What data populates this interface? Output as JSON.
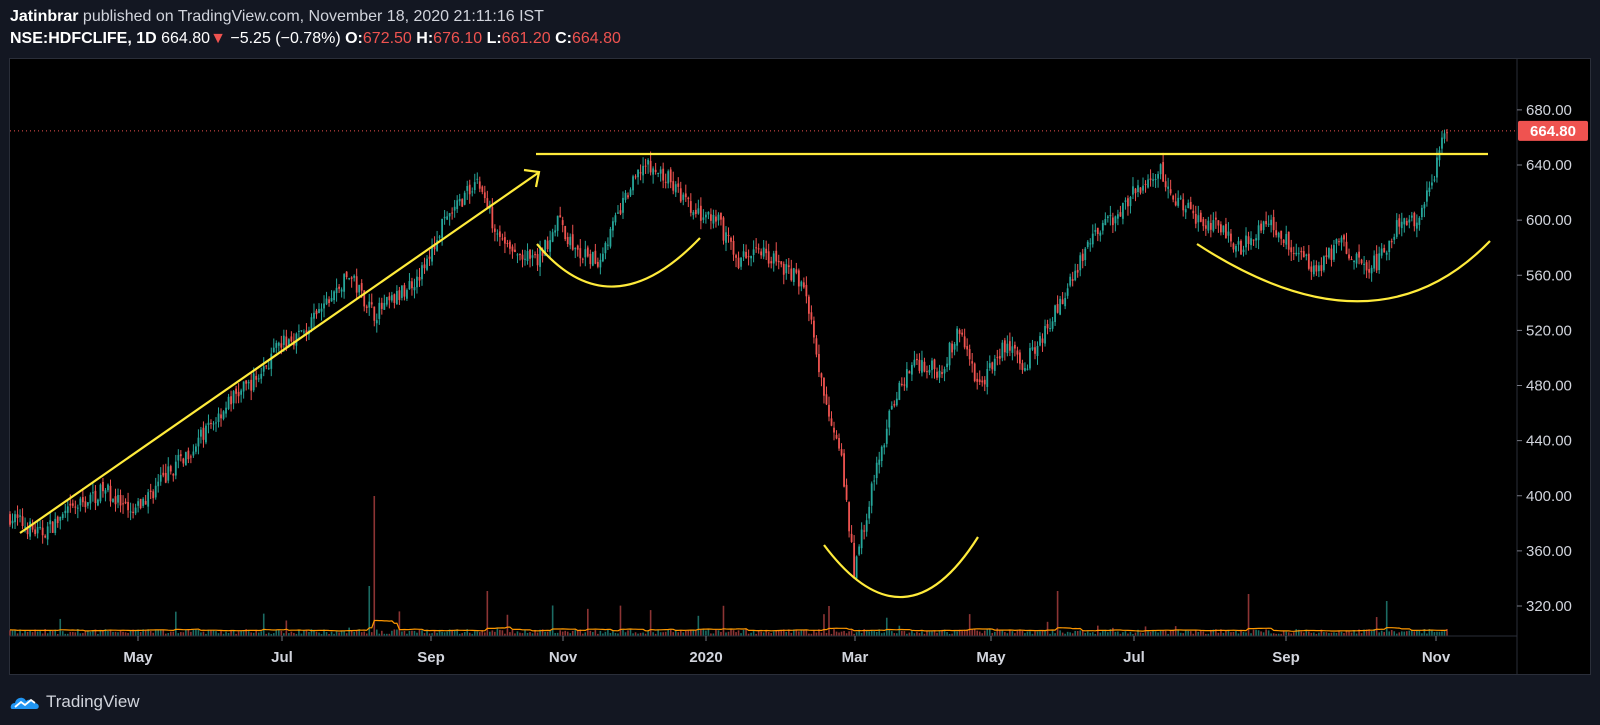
{
  "header": {
    "author": "Jatinbrar",
    "published_text": "published on TradingView.com, November 18, 2020 21:11:16 IST",
    "symbol": "NSE:HDFCLIFE, 1D",
    "last": "664.80",
    "change": "−5.25 (−0.78%)",
    "open_label": "O:",
    "open": "672.50",
    "high_label": "H:",
    "high": "676.10",
    "low_label": "L:",
    "low": "661.20",
    "close_label": "C:",
    "close": "664.80"
  },
  "footer": {
    "brand": "TradingView",
    "logo_icon": "tradingview-logo-icon"
  },
  "colors": {
    "up": "#26a69a",
    "down": "#ef5350",
    "annotation": "#ffeb3b",
    "volume_ma": "#ff9800",
    "price_tag": "#ef5350"
  },
  "chart_data": {
    "type": "candlestick",
    "y_range": [
      310,
      695
    ],
    "y_ticks": [
      "680.00",
      "640.00",
      "600.00",
      "560.00",
      "520.00",
      "480.00",
      "440.00",
      "400.00",
      "360.00",
      "320.00"
    ],
    "x_ticks": [
      "May",
      "Jul",
      "Sep",
      "Nov",
      "2020",
      "Mar",
      "May",
      "Jul",
      "Sep",
      "Nov"
    ],
    "last_price": "664.80",
    "price_path": [
      [
        0,
        385
      ],
      [
        12,
        372
      ],
      [
        25,
        390
      ],
      [
        38,
        405
      ],
      [
        48,
        385
      ],
      [
        60,
        410
      ],
      [
        75,
        440
      ],
      [
        88,
        470
      ],
      [
        98,
        485
      ],
      [
        108,
        510
      ],
      [
        118,
        520
      ],
      [
        126,
        540
      ],
      [
        135,
        560
      ],
      [
        145,
        532
      ],
      [
        155,
        545
      ],
      [
        165,
        565
      ],
      [
        172,
        595
      ],
      [
        178,
        610
      ],
      [
        186,
        630
      ],
      [
        192,
        600
      ],
      [
        200,
        575
      ],
      [
        210,
        570
      ],
      [
        218,
        600
      ],
      [
        226,
        575
      ],
      [
        234,
        570
      ],
      [
        244,
        612
      ],
      [
        252,
        640
      ],
      [
        262,
        630
      ],
      [
        272,
        605
      ],
      [
        282,
        598
      ],
      [
        290,
        570
      ],
      [
        298,
        580
      ],
      [
        306,
        568
      ],
      [
        316,
        555
      ],
      [
        324,
        470
      ],
      [
        330,
        440
      ],
      [
        336,
        345
      ],
      [
        340,
        380
      ],
      [
        345,
        420
      ],
      [
        352,
        470
      ],
      [
        360,
        498
      ],
      [
        370,
        490
      ],
      [
        378,
        520
      ],
      [
        386,
        478
      ],
      [
        396,
        510
      ],
      [
        404,
        495
      ],
      [
        412,
        520
      ],
      [
        420,
        545
      ],
      [
        428,
        580
      ],
      [
        438,
        600
      ],
      [
        450,
        625
      ],
      [
        458,
        635
      ],
      [
        462,
        618
      ],
      [
        470,
        605
      ],
      [
        480,
        595
      ],
      [
        490,
        580
      ],
      [
        500,
        600
      ],
      [
        510,
        582
      ],
      [
        520,
        565
      ],
      [
        530,
        585
      ],
      [
        538,
        565
      ],
      [
        545,
        570
      ],
      [
        552,
        595
      ],
      [
        560,
        600
      ],
      [
        566,
        628
      ],
      [
        572,
        669
      ]
    ],
    "resistance": {
      "price": 648
    }
  }
}
